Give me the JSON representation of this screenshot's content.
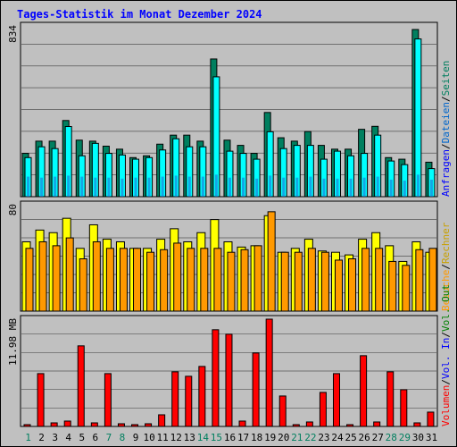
{
  "title": "Tages-Statistik im Monat Dezember 2024",
  "colors": {
    "anfragen": "#007f5f",
    "dateien": "#00ffff",
    "seiten": "#00e5ff",
    "besuche": "#ffff00",
    "rechner": "#ff9900",
    "volumen": "#ff0000",
    "vol_in": "#0000ff",
    "vol_out": "#008000",
    "weekend_label": "#007f5f",
    "weekday_label": "#000000",
    "grid": "#555555",
    "panel_bg": "#c0c0c0"
  },
  "chart_data": [
    {
      "type": "bar",
      "panel": "top",
      "ymax_label": "834",
      "ylim": [
        0,
        834
      ],
      "grid": true,
      "categories": [
        "1",
        "2",
        "3",
        "4",
        "5",
        "6",
        "7",
        "8",
        "9",
        "10",
        "11",
        "12",
        "13",
        "14",
        "15",
        "16",
        "17",
        "18",
        "19",
        "20",
        "21",
        "22",
        "23",
        "24",
        "25",
        "26",
        "27",
        "28",
        "29",
        "30",
        "31"
      ],
      "legend": [
        {
          "label": "Anfragen",
          "color_key": "anfragen"
        },
        {
          "label": "Dateien",
          "color_key": "dateien"
        },
        {
          "label": "Seiten",
          "color_key": "seiten"
        }
      ],
      "series": [
        {
          "name": "Anfragen",
          "values": [
            216,
            277,
            277,
            380,
            282,
            277,
            252,
            237,
            195,
            204,
            262,
            307,
            307,
            277,
            687,
            282,
            256,
            216,
            420,
            294,
            277,
            325,
            256,
            237,
            237,
            336,
            351,
            195,
            187,
            834,
            172
          ]
        },
        {
          "name": "Dateien",
          "values": [
            195,
            249,
            240,
            350,
            204,
            266,
            216,
            208,
            187,
            195,
            233,
            289,
            249,
            249,
            598,
            227,
            216,
            187,
            324,
            240,
            256,
            256,
            187,
            227,
            204,
            216,
            307,
            178,
            160,
            787,
            140
          ]
        },
        {
          "name": "Seiten",
          "values": [
            100,
            95,
            100,
            105,
            100,
            95,
            95,
            90,
            95,
            95,
            100,
            105,
            100,
            100,
            110,
            95,
            95,
            90,
            105,
            95,
            95,
            100,
            90,
            90,
            90,
            95,
            100,
            85,
            80,
            110,
            85
          ]
        }
      ]
    },
    {
      "type": "bar",
      "panel": "middle",
      "ymax_label": "80",
      "ylim": [
        0,
        80
      ],
      "grid": true,
      "categories": [
        "1",
        "2",
        "3",
        "4",
        "5",
        "6",
        "7",
        "8",
        "9",
        "10",
        "11",
        "12",
        "13",
        "14",
        "15",
        "16",
        "17",
        "18",
        "19",
        "20",
        "21",
        "22",
        "23",
        "24",
        "25",
        "26",
        "27",
        "28",
        "29",
        "30",
        "31"
      ],
      "legend": [
        {
          "label": "Besuche",
          "color_key": "besuche"
        },
        {
          "label": "Rechner",
          "color_key": "rechner"
        }
      ],
      "series": [
        {
          "name": "Besuche",
          "values": [
            53,
            62,
            60,
            71,
            48,
            66,
            55,
            53,
            48,
            48,
            55,
            63,
            53,
            60,
            70,
            53,
            49,
            50,
            73,
            45,
            48,
            55,
            46,
            45,
            43,
            55,
            60,
            50,
            38,
            53,
            45
          ]
        },
        {
          "name": "Rechner",
          "values": [
            48,
            53,
            50,
            56,
            40,
            53,
            48,
            48,
            48,
            45,
            47,
            52,
            48,
            48,
            48,
            45,
            47,
            50,
            76,
            45,
            45,
            48,
            45,
            39,
            40,
            48,
            48,
            38,
            35,
            47,
            48
          ]
        }
      ]
    },
    {
      "type": "bar",
      "panel": "bottom",
      "ymax_label": "11.98 MB",
      "ylim": [
        0,
        11.98
      ],
      "grid": true,
      "categories": [
        "1",
        "2",
        "3",
        "4",
        "5",
        "6",
        "7",
        "8",
        "9",
        "10",
        "11",
        "12",
        "13",
        "14",
        "15",
        "16",
        "17",
        "18",
        "19",
        "20",
        "21",
        "22",
        "23",
        "24",
        "25",
        "26",
        "27",
        "28",
        "29",
        "30",
        "31"
      ],
      "legend": [
        {
          "label": "Volumen",
          "color_key": "volumen"
        },
        {
          "label": "Vol. In",
          "color_key": "vol_in"
        },
        {
          "label": "Vol. Out",
          "color_key": "vol_out"
        }
      ],
      "series": [
        {
          "name": "Volumen",
          "values": [
            0.2,
            5.9,
            0.4,
            0.6,
            9.0,
            0.4,
            5.9,
            0.3,
            0.2,
            0.3,
            1.3,
            6.1,
            5.6,
            6.7,
            10.8,
            10.3,
            0.6,
            8.2,
            11.98,
            3.4,
            0.2,
            0.5,
            3.8,
            5.9,
            0.2,
            7.9,
            0.5,
            6.1,
            4.1,
            0.4,
            1.6
          ]
        }
      ]
    }
  ],
  "x_labels": [
    {
      "text": "1",
      "weekend": true
    },
    {
      "text": "2",
      "weekend": false
    },
    {
      "text": "3",
      "weekend": false
    },
    {
      "text": "4",
      "weekend": false
    },
    {
      "text": "5",
      "weekend": false
    },
    {
      "text": "6",
      "weekend": false
    },
    {
      "text": "7",
      "weekend": true
    },
    {
      "text": "8",
      "weekend": true
    },
    {
      "text": "9",
      "weekend": false
    },
    {
      "text": "10",
      "weekend": false
    },
    {
      "text": "11",
      "weekend": false
    },
    {
      "text": "12",
      "weekend": false
    },
    {
      "text": "13",
      "weekend": false
    },
    {
      "text": "14",
      "weekend": true
    },
    {
      "text": "15",
      "weekend": true
    },
    {
      "text": "16",
      "weekend": false
    },
    {
      "text": "17",
      "weekend": false
    },
    {
      "text": "18",
      "weekend": false
    },
    {
      "text": "19",
      "weekend": false
    },
    {
      "text": "20",
      "weekend": false
    },
    {
      "text": "21",
      "weekend": true
    },
    {
      "text": "22",
      "weekend": true
    },
    {
      "text": "23",
      "weekend": false
    },
    {
      "text": "24",
      "weekend": false
    },
    {
      "text": "25",
      "weekend": false
    },
    {
      "text": "26",
      "weekend": false
    },
    {
      "text": "27",
      "weekend": false
    },
    {
      "text": "28",
      "weekend": true
    },
    {
      "text": "29",
      "weekend": true
    },
    {
      "text": "30",
      "weekend": false
    },
    {
      "text": "31",
      "weekend": false
    }
  ],
  "right_legends": {
    "top": [
      "Anfragen",
      "/",
      "Dateien",
      "/",
      "Seiten"
    ],
    "middle": [
      "Besuche",
      "/",
      "Rechner"
    ],
    "bottom": [
      "Volumen",
      "/",
      "Vol. In",
      "/",
      "Vol. Out"
    ]
  }
}
